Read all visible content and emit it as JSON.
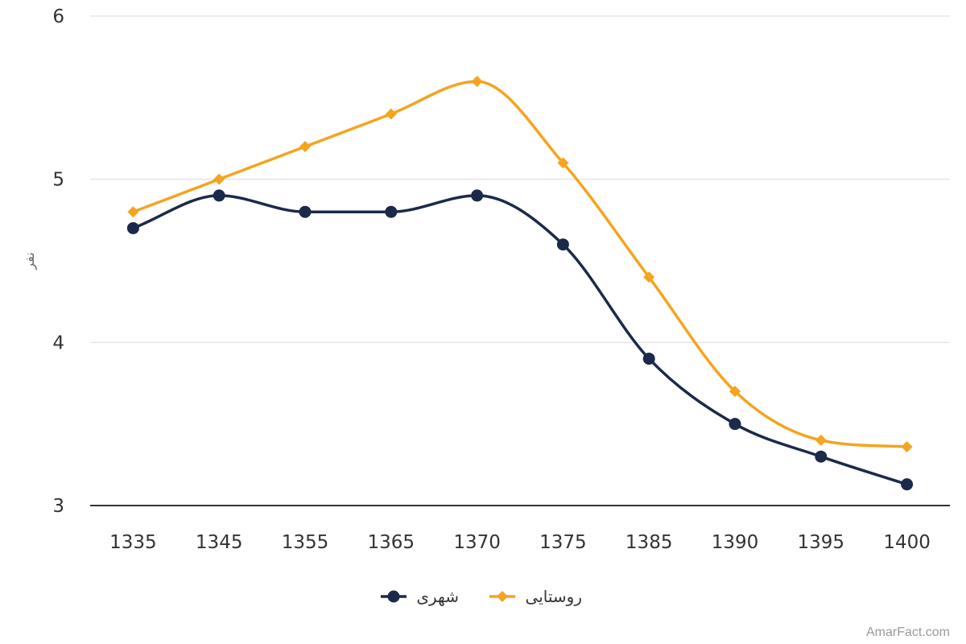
{
  "chart_data": {
    "type": "line",
    "categories": [
      "1335",
      "1345",
      "1355",
      "1365",
      "1370",
      "1375",
      "1385",
      "1390",
      "1395",
      "1400"
    ],
    "series": [
      {
        "name": "شهری",
        "color": "#1b2a4a",
        "marker": "circle",
        "values": [
          4.7,
          4.9,
          4.8,
          4.8,
          4.9,
          4.6,
          3.9,
          3.5,
          3.3,
          3.13
        ]
      },
      {
        "name": "روستایی",
        "color": "#f5a41d",
        "marker": "diamond",
        "values": [
          4.8,
          5.0,
          5.2,
          5.4,
          5.6,
          5.1,
          4.4,
          3.7,
          3.4,
          3.36
        ]
      }
    ],
    "ylabel": "نفر",
    "ylim": [
      3,
      6
    ],
    "yticks": [
      3,
      4,
      5,
      6
    ],
    "grid": true,
    "legend": "bottom",
    "smooth": true
  },
  "credit": "AmarFact.com"
}
